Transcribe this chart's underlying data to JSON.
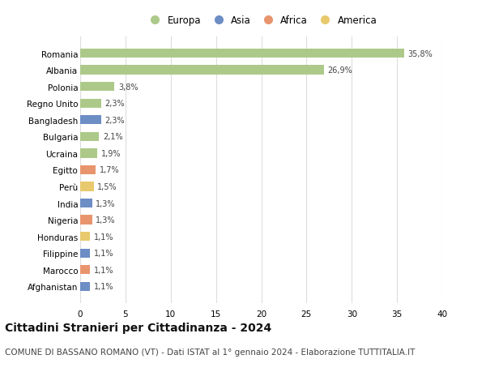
{
  "categories": [
    "Romania",
    "Albania",
    "Polonia",
    "Regno Unito",
    "Bangladesh",
    "Bulgaria",
    "Ucraina",
    "Egitto",
    "Perù",
    "India",
    "Nigeria",
    "Honduras",
    "Filippine",
    "Marocco",
    "Afghanistan"
  ],
  "values": [
    35.8,
    26.9,
    3.8,
    2.3,
    2.3,
    2.1,
    1.9,
    1.7,
    1.5,
    1.3,
    1.3,
    1.1,
    1.1,
    1.1,
    1.1
  ],
  "labels": [
    "35,8%",
    "26,9%",
    "3,8%",
    "2,3%",
    "2,3%",
    "2,1%",
    "1,9%",
    "1,7%",
    "1,5%",
    "1,3%",
    "1,3%",
    "1,1%",
    "1,1%",
    "1,1%",
    "1,1%"
  ],
  "continent": [
    "Europa",
    "Europa",
    "Europa",
    "Europa",
    "Asia",
    "Europa",
    "Europa",
    "Africa",
    "America",
    "Asia",
    "Africa",
    "America",
    "Asia",
    "Africa",
    "Asia"
  ],
  "colors": {
    "Europa": "#adc98a",
    "Asia": "#6d8dc5",
    "Africa": "#e8956d",
    "America": "#e8c96d"
  },
  "legend_items": [
    "Europa",
    "Asia",
    "Africa",
    "America"
  ],
  "title": "Cittadini Stranieri per Cittadinanza - 2024",
  "subtitle": "COMUNE DI BASSANO ROMANO (VT) - Dati ISTAT al 1° gennaio 2024 - Elaborazione TUTTITALIA.IT",
  "xlim": [
    0,
    40
  ],
  "xticks": [
    0,
    5,
    10,
    15,
    20,
    25,
    30,
    35,
    40
  ],
  "background_color": "#ffffff",
  "grid_color": "#dddddd",
  "title_fontsize": 10,
  "subtitle_fontsize": 7.5,
  "bar_height": 0.55
}
